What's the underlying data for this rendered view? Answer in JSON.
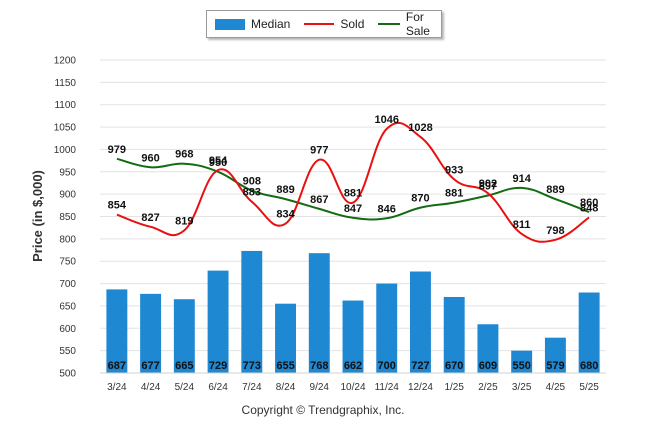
{
  "chart_data": {
    "type": "bar+line",
    "categories": [
      "3/24",
      "4/24",
      "5/24",
      "6/24",
      "7/24",
      "8/24",
      "9/24",
      "10/24",
      "11/24",
      "12/24",
      "1/25",
      "2/25",
      "3/25",
      "4/25",
      "5/25"
    ],
    "series": [
      {
        "name": "Median",
        "type": "bar",
        "color": "#1f88d2",
        "values": [
          687,
          677,
          665,
          729,
          773,
          655,
          768,
          662,
          700,
          727,
          670,
          609,
          550,
          579,
          680
        ]
      },
      {
        "name": "Sold",
        "type": "line",
        "color": "#e81010",
        "values": [
          854,
          827,
          819,
          954,
          883,
          834,
          977,
          881,
          1046,
          1028,
          933,
          902,
          811,
          798,
          848
        ]
      },
      {
        "name": "For Sale",
        "type": "line",
        "color": "#136b13",
        "values": [
          979,
          960,
          968,
          950,
          908,
          889,
          867,
          847,
          846,
          870,
          881,
          897,
          914,
          889,
          860
        ]
      }
    ],
    "ylabel": "Price (in $,000)",
    "ylim": [
      500,
      1200
    ],
    "yticks": [
      500,
      550,
      600,
      650,
      700,
      750,
      800,
      850,
      900,
      950,
      1000,
      1050,
      1100,
      1150,
      1200
    ],
    "grid": true,
    "legend_position": "top-center"
  },
  "footer": {
    "copyright": "Copyright © Trendgraphix, Inc."
  }
}
